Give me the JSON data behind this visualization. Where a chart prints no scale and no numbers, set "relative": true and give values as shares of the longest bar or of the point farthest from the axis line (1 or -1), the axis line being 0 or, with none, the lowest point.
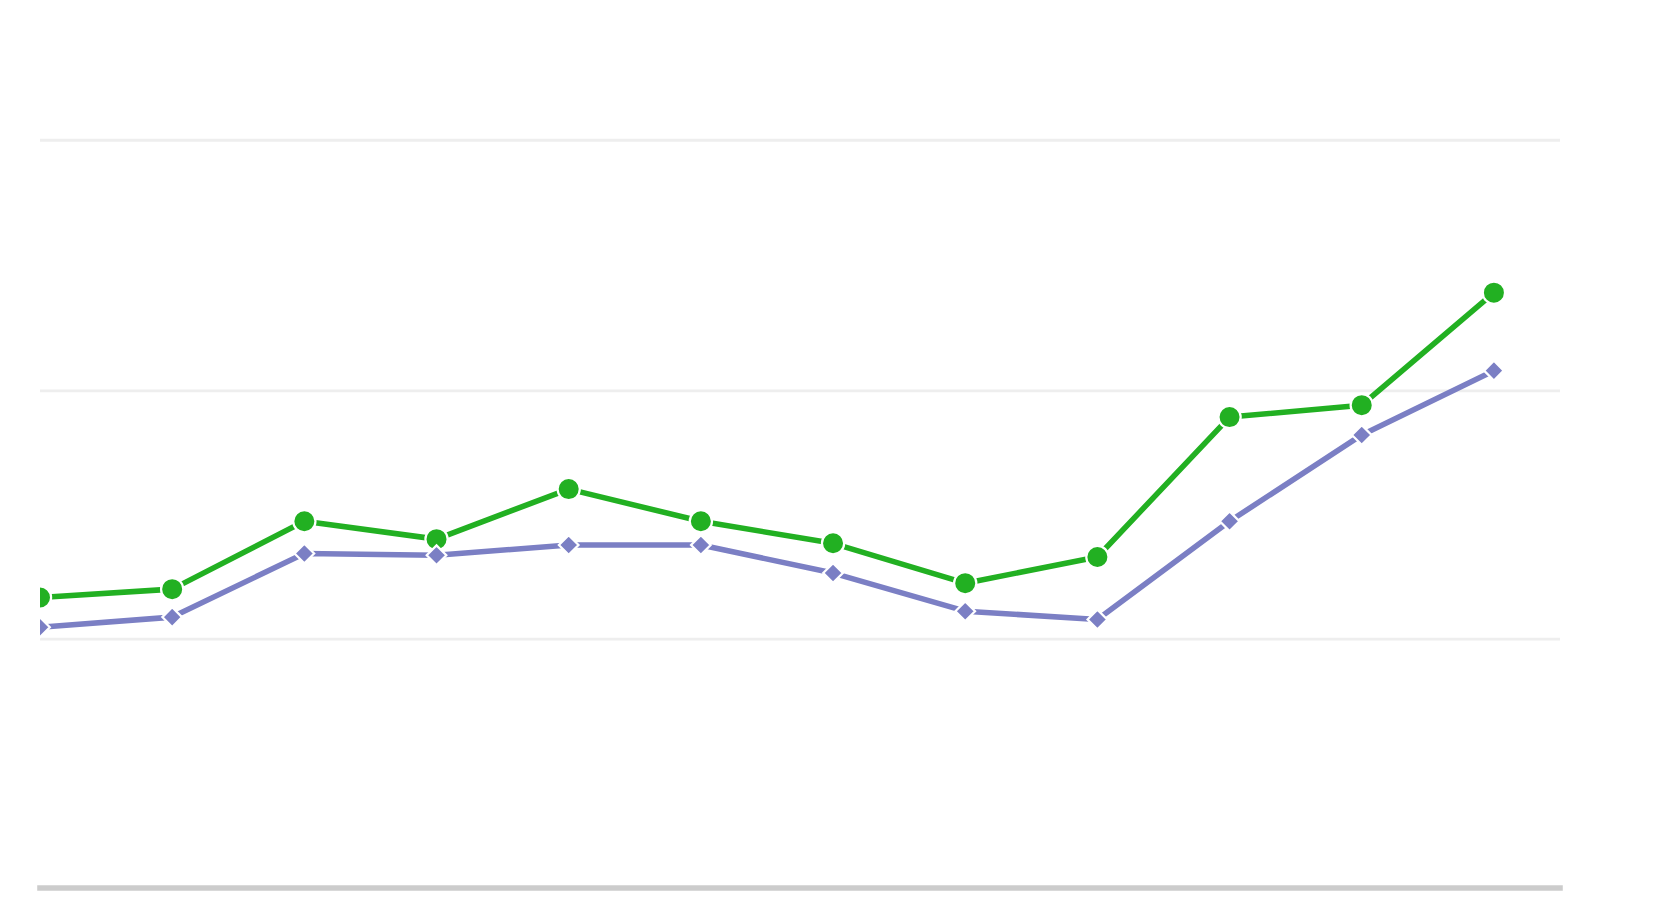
{
  "chart_data": {
    "type": "line",
    "relative": true,
    "ref_lines": [
      {
        "axis": "y",
        "value": 0.418,
        "color": "#eeeeee"
      },
      {
        "axis": "y",
        "value": 0.835,
        "color": "#eeeeee"
      },
      {
        "axis": "y",
        "value": 1.256,
        "color": "#eeeeee"
      }
    ],
    "categories": [
      null,
      null,
      null,
      null,
      null,
      null,
      null,
      null,
      null,
      null,
      null,
      null
    ],
    "series": [
      {
        "color": "#22b022",
        "marker": "circle",
        "values": [
          0.488,
          0.502,
          0.616,
          0.586,
          0.67,
          0.616,
          0.579,
          0.512,
          0.556,
          0.791,
          0.811,
          1.0
        ]
      },
      {
        "color": "#7b7fc4",
        "marker": "diamond",
        "values": [
          0.438,
          0.455,
          0.562,
          0.559,
          0.576,
          0.576,
          0.529,
          0.465,
          0.451,
          0.616,
          0.761,
          0.869
        ]
      }
    ]
  }
}
